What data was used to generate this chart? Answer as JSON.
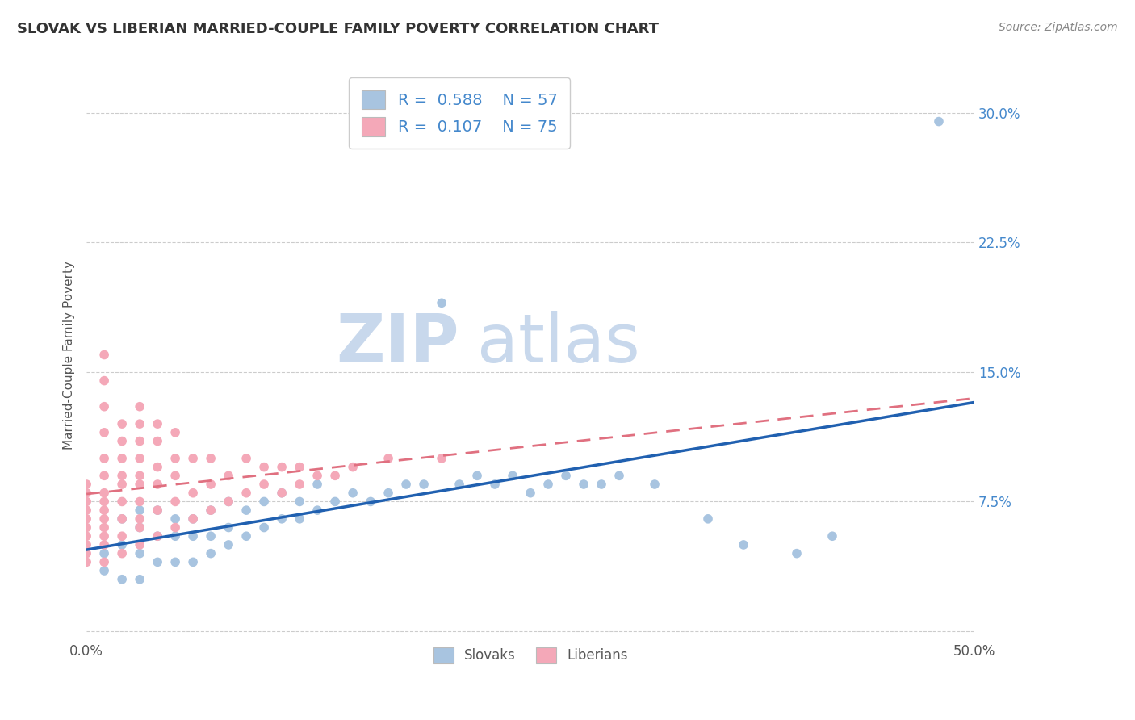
{
  "title": "SLOVAK VS LIBERIAN MARRIED-COUPLE FAMILY POVERTY CORRELATION CHART",
  "source": "Source: ZipAtlas.com",
  "ylabel": "Married-Couple Family Poverty",
  "xlim": [
    0.0,
    0.5
  ],
  "ylim": [
    -0.005,
    0.325
  ],
  "yticks": [
    0.0,
    0.075,
    0.15,
    0.225,
    0.3
  ],
  "ytick_labels": [
    "",
    "7.5%",
    "15.0%",
    "22.5%",
    "30.0%"
  ],
  "xticks": [
    0.0,
    0.5
  ],
  "xtick_labels": [
    "0.0%",
    "50.0%"
  ],
  "background_color": "#ffffff",
  "grid_color": "#cccccc",
  "slovak_color": "#a8c4e0",
  "liberian_color": "#f4a8b8",
  "slovak_line_color": "#2060b0",
  "liberian_line_color": "#e07080",
  "slovak_R": 0.588,
  "slovak_N": 57,
  "liberian_R": 0.107,
  "liberian_N": 75,
  "tick_color": "#4488cc",
  "watermark_zip": "ZIP",
  "watermark_atlas": "atlas",
  "watermark_color": "#c8d8ec",
  "slovak_dots": [
    [
      0.01,
      0.035
    ],
    [
      0.01,
      0.045
    ],
    [
      0.02,
      0.03
    ],
    [
      0.02,
      0.05
    ],
    [
      0.02,
      0.065
    ],
    [
      0.03,
      0.03
    ],
    [
      0.03,
      0.045
    ],
    [
      0.03,
      0.06
    ],
    [
      0.03,
      0.07
    ],
    [
      0.04,
      0.04
    ],
    [
      0.04,
      0.055
    ],
    [
      0.04,
      0.07
    ],
    [
      0.05,
      0.04
    ],
    [
      0.05,
      0.055
    ],
    [
      0.05,
      0.065
    ],
    [
      0.06,
      0.04
    ],
    [
      0.06,
      0.055
    ],
    [
      0.06,
      0.065
    ],
    [
      0.07,
      0.045
    ],
    [
      0.07,
      0.055
    ],
    [
      0.07,
      0.07
    ],
    [
      0.08,
      0.05
    ],
    [
      0.08,
      0.06
    ],
    [
      0.08,
      0.075
    ],
    [
      0.09,
      0.055
    ],
    [
      0.09,
      0.07
    ],
    [
      0.1,
      0.06
    ],
    [
      0.1,
      0.075
    ],
    [
      0.11,
      0.065
    ],
    [
      0.11,
      0.08
    ],
    [
      0.12,
      0.065
    ],
    [
      0.12,
      0.075
    ],
    [
      0.13,
      0.07
    ],
    [
      0.13,
      0.085
    ],
    [
      0.14,
      0.075
    ],
    [
      0.15,
      0.08
    ],
    [
      0.16,
      0.075
    ],
    [
      0.17,
      0.08
    ],
    [
      0.18,
      0.085
    ],
    [
      0.19,
      0.085
    ],
    [
      0.2,
      0.19
    ],
    [
      0.21,
      0.085
    ],
    [
      0.22,
      0.09
    ],
    [
      0.23,
      0.085
    ],
    [
      0.24,
      0.09
    ],
    [
      0.25,
      0.08
    ],
    [
      0.26,
      0.085
    ],
    [
      0.27,
      0.09
    ],
    [
      0.28,
      0.085
    ],
    [
      0.29,
      0.085
    ],
    [
      0.3,
      0.09
    ],
    [
      0.32,
      0.085
    ],
    [
      0.35,
      0.065
    ],
    [
      0.37,
      0.05
    ],
    [
      0.4,
      0.045
    ],
    [
      0.42,
      0.055
    ],
    [
      0.48,
      0.295
    ]
  ],
  "liberian_dots": [
    [
      0.0,
      0.04
    ],
    [
      0.0,
      0.045
    ],
    [
      0.0,
      0.05
    ],
    [
      0.0,
      0.055
    ],
    [
      0.0,
      0.06
    ],
    [
      0.0,
      0.065
    ],
    [
      0.0,
      0.07
    ],
    [
      0.0,
      0.075
    ],
    [
      0.0,
      0.08
    ],
    [
      0.0,
      0.085
    ],
    [
      0.01,
      0.04
    ],
    [
      0.01,
      0.05
    ],
    [
      0.01,
      0.055
    ],
    [
      0.01,
      0.06
    ],
    [
      0.01,
      0.065
    ],
    [
      0.01,
      0.07
    ],
    [
      0.01,
      0.075
    ],
    [
      0.01,
      0.08
    ],
    [
      0.01,
      0.09
    ],
    [
      0.01,
      0.1
    ],
    [
      0.01,
      0.115
    ],
    [
      0.01,
      0.13
    ],
    [
      0.01,
      0.145
    ],
    [
      0.01,
      0.16
    ],
    [
      0.02,
      0.045
    ],
    [
      0.02,
      0.055
    ],
    [
      0.02,
      0.065
    ],
    [
      0.02,
      0.075
    ],
    [
      0.02,
      0.085
    ],
    [
      0.02,
      0.09
    ],
    [
      0.02,
      0.1
    ],
    [
      0.02,
      0.11
    ],
    [
      0.02,
      0.12
    ],
    [
      0.03,
      0.05
    ],
    [
      0.03,
      0.06
    ],
    [
      0.03,
      0.065
    ],
    [
      0.03,
      0.075
    ],
    [
      0.03,
      0.085
    ],
    [
      0.03,
      0.09
    ],
    [
      0.03,
      0.1
    ],
    [
      0.03,
      0.11
    ],
    [
      0.03,
      0.12
    ],
    [
      0.03,
      0.13
    ],
    [
      0.04,
      0.055
    ],
    [
      0.04,
      0.07
    ],
    [
      0.04,
      0.085
    ],
    [
      0.04,
      0.095
    ],
    [
      0.04,
      0.11
    ],
    [
      0.04,
      0.12
    ],
    [
      0.05,
      0.06
    ],
    [
      0.05,
      0.075
    ],
    [
      0.05,
      0.09
    ],
    [
      0.05,
      0.1
    ],
    [
      0.05,
      0.115
    ],
    [
      0.06,
      0.065
    ],
    [
      0.06,
      0.08
    ],
    [
      0.06,
      0.1
    ],
    [
      0.07,
      0.07
    ],
    [
      0.07,
      0.085
    ],
    [
      0.07,
      0.1
    ],
    [
      0.08,
      0.075
    ],
    [
      0.08,
      0.09
    ],
    [
      0.09,
      0.08
    ],
    [
      0.09,
      0.1
    ],
    [
      0.1,
      0.085
    ],
    [
      0.1,
      0.095
    ],
    [
      0.11,
      0.08
    ],
    [
      0.11,
      0.095
    ],
    [
      0.12,
      0.085
    ],
    [
      0.12,
      0.095
    ],
    [
      0.13,
      0.09
    ],
    [
      0.14,
      0.09
    ],
    [
      0.15,
      0.095
    ],
    [
      0.17,
      0.1
    ],
    [
      0.2,
      0.1
    ]
  ]
}
